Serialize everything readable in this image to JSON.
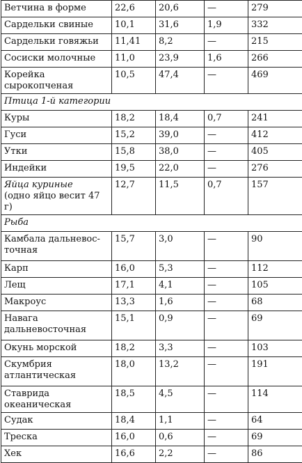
{
  "table": {
    "rows": [
      {
        "kind": "row",
        "name": "Ветчина в форме",
        "protein": "22,6",
        "fat": "20,6",
        "carbs": "—",
        "kcal": "279"
      },
      {
        "kind": "row",
        "name": "Сардельки свиные",
        "protein": "10,1",
        "fat": "31,6",
        "carbs": "1,9",
        "kcal": "332"
      },
      {
        "kind": "row",
        "name": "Сардельки говяжьи",
        "protein": "11,41",
        "fat": "8,2",
        "carbs": "—",
        "kcal": "215"
      },
      {
        "kind": "row",
        "name": "Сосиски молочные",
        "protein": "11,0",
        "fat": "23,9",
        "carbs": "1,6",
        "kcal": "266"
      },
      {
        "kind": "row",
        "name": "Корейка сырокопченая",
        "protein": "10,5",
        "fat": "47,4",
        "carbs": "—",
        "kcal": "469"
      },
      {
        "kind": "cat",
        "name": "Птица 1-й категории"
      },
      {
        "kind": "row",
        "name": "Куры",
        "protein": "18,2",
        "fat": "18,4",
        "carbs": "0,7",
        "kcal": "241"
      },
      {
        "kind": "row",
        "name": "Гуси",
        "protein": "15,2",
        "fat": "39,0",
        "carbs": "—",
        "kcal": "412"
      },
      {
        "kind": "row",
        "name": "Утки",
        "protein": "15,8",
        "fat": "38,0",
        "carbs": "—",
        "kcal": "405"
      },
      {
        "kind": "row",
        "name": "Индейки",
        "protein": "19,5",
        "fat": "22,0",
        "carbs": "—",
        "kcal": "276"
      },
      {
        "kind": "row",
        "two": true,
        "italicName": true,
        "name": "Яйца куриные",
        "sub": "(одно яйцо весит 47 г)",
        "protein": "12,7",
        "fat": "11,5",
        "carbs": "0,7",
        "kcal": "157"
      },
      {
        "kind": "cat",
        "name": "Рыба"
      },
      {
        "kind": "row",
        "two": true,
        "name": "Камбала дальневос-",
        "sub": "точная",
        "protein": "15,7",
        "fat": "3,0",
        "carbs": "—",
        "kcal": "90"
      },
      {
        "kind": "row",
        "name": "Карп",
        "protein": "16,0",
        "fat": "5,3",
        "carbs": "—",
        "kcal": "112"
      },
      {
        "kind": "row",
        "name": "Лещ",
        "protein": "17,1",
        "fat": "4,1",
        "carbs": "—",
        "kcal": "105"
      },
      {
        "kind": "row",
        "name": "Макроус",
        "protein": "13,3",
        "fat": "1,6",
        "carbs": "—",
        "kcal": "68"
      },
      {
        "kind": "row",
        "two": true,
        "name": "Навага",
        "sub": "дальневосточная",
        "protein": "15,1",
        "fat": "0,9",
        "carbs": "—",
        "kcal": "69"
      },
      {
        "kind": "row",
        "name": "Окунь морской",
        "protein": "18,2",
        "fat": "3,3",
        "carbs": "—",
        "kcal": "103"
      },
      {
        "kind": "row",
        "two": true,
        "name": "Скумбрия",
        "sub": "атлантическая",
        "protein": "18,0",
        "fat": "13,2",
        "carbs": "—",
        "kcal": "191"
      },
      {
        "kind": "row",
        "name": "Ставрида океаническая",
        "protein": "18,5",
        "fat": "4,5",
        "carbs": "—",
        "kcal": "114"
      },
      {
        "kind": "row",
        "name": "Судак",
        "protein": "18,4",
        "fat": "1,1",
        "carbs": "—",
        "kcal": "64"
      },
      {
        "kind": "row",
        "name": "Треска",
        "protein": "16,0",
        "fat": "0,6",
        "carbs": "—",
        "kcal": "69"
      },
      {
        "kind": "row",
        "name": "Хек",
        "protein": "16,6",
        "fat": "2,2",
        "carbs": "—",
        "kcal": "86"
      }
    ]
  }
}
